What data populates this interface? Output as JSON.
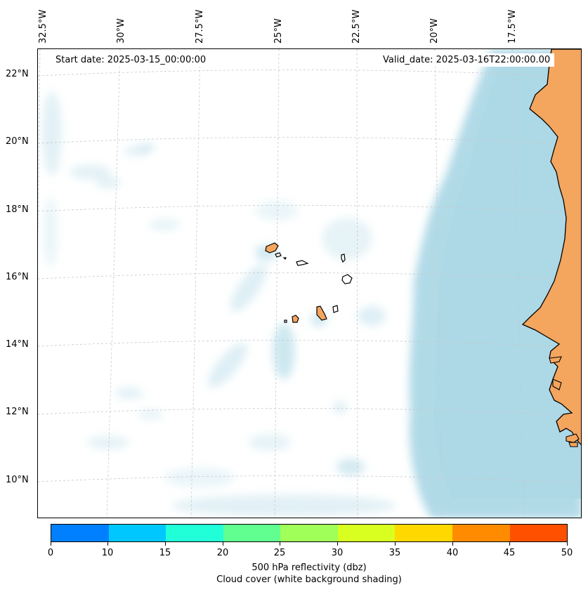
{
  "header": {
    "start_date": "Start date: 2025-03-15_00:00:00",
    "valid_date": "Valid_date: 2025-03-16T22:00:00.00"
  },
  "map": {
    "longitude_labels": [
      "32.5°W",
      "30°W",
      "27.5°W",
      "25°W",
      "22.5°W",
      "20°W",
      "17.5°W"
    ],
    "latitude_labels": [
      "22°N",
      "20°N",
      "18°N",
      "16°N",
      "14°N",
      "12°N",
      "10°N"
    ],
    "colors": {
      "land": "#f4a55e",
      "cloud": "#add8e6",
      "ocean": "#ffffff",
      "coastline": "#000000",
      "gridline": "#cccccc"
    }
  },
  "colorbar": {
    "ticks": [
      "0",
      "10",
      "15",
      "20",
      "25",
      "30",
      "35",
      "40",
      "45",
      "50"
    ],
    "colors": [
      "#0080ff",
      "#00c8ff",
      "#20ffd8",
      "#60ff90",
      "#a0ff58",
      "#d8ff20",
      "#ffd800",
      "#ff8c00",
      "#ff5000"
    ],
    "label_line1": "500 hPa reflectivity (dbz)",
    "label_line2": "Cloud cover (white background shading)"
  }
}
